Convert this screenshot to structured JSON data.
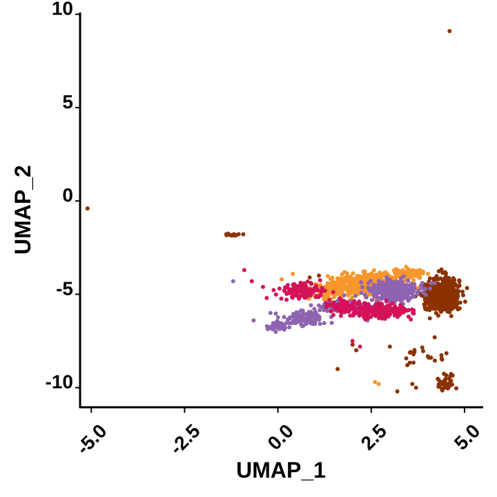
{
  "chart_data": {
    "type": "scatter",
    "xlabel": "UMAP_1",
    "ylabel": "UMAP_2",
    "xlim": [
      -5.3,
      5.5
    ],
    "ylim": [
      -11.05,
      10.1
    ],
    "x_ticks": [
      "-5.0",
      "-2.5",
      "0.0",
      "2.5",
      "5.0"
    ],
    "y_ticks": [
      "10",
      "5",
      "0",
      "-5",
      "-10"
    ],
    "grid": false,
    "legend": "none",
    "series": [
      {
        "color": "#8B3200",
        "clusters": [
          {
            "center": [
              4.5,
              -5.0
            ],
            "spread": [
              0.22,
              0.55
            ],
            "n": 520
          },
          {
            "center": [
              4.1,
              -5.1
            ],
            "spread": [
              0.18,
              0.45
            ],
            "n": 140
          },
          {
            "center": [
              4.5,
              -9.7
            ],
            "spread": [
              0.15,
              0.35
            ],
            "n": 40
          },
          {
            "center": [
              3.9,
              -8.3
            ],
            "spread": [
              0.35,
              0.25
            ],
            "n": 18
          },
          {
            "center": [
              -1.2,
              -1.8
            ],
            "spread": [
              0.12,
              0.07
            ],
            "n": 12
          }
        ],
        "points": [
          [
            4.6,
            9.1
          ],
          [
            -5.1,
            -0.4
          ],
          [
            1.6,
            -9.0
          ],
          [
            1.1,
            -4.0
          ],
          [
            0.85,
            -4.1
          ],
          [
            3.6,
            -9.8
          ],
          [
            3.2,
            -10.2
          ],
          [
            2.0,
            -7.7
          ],
          [
            2.1,
            -8.0
          ],
          [
            3.7,
            -10.0
          ],
          [
            4.4,
            -8.5
          ],
          [
            4.2,
            -7.3
          ],
          [
            3.0,
            -7.8
          ]
        ]
      },
      {
        "color": "#F7962B",
        "clusters": [
          {
            "center": [
              2.4,
              -4.5
            ],
            "spread": [
              0.6,
              0.35
            ],
            "n": 520
          },
          {
            "center": [
              3.5,
              -3.9
            ],
            "spread": [
              0.25,
              0.15
            ],
            "n": 90
          },
          {
            "center": [
              1.3,
              -4.9
            ],
            "spread": [
              0.3,
              0.3
            ],
            "n": 80
          }
        ],
        "points": [
          [
            0.4,
            -3.9
          ],
          [
            0.1,
            -4.2
          ],
          [
            2.7,
            -9.8
          ],
          [
            2.6,
            -9.7
          ]
        ]
      },
      {
        "color": "#8E64B0",
        "clusters": [
          {
            "center": [
              3.1,
              -4.8
            ],
            "spread": [
              0.4,
              0.35
            ],
            "n": 380
          },
          {
            "center": [
              1.8,
              -5.7
            ],
            "spread": [
              0.5,
              0.2
            ],
            "n": 130
          },
          {
            "center": [
              0.7,
              -6.3
            ],
            "spread": [
              0.35,
              0.25
            ],
            "n": 110
          },
          {
            "center": [
              0.0,
              -6.7
            ],
            "spread": [
              0.15,
              0.12
            ],
            "n": 60
          }
        ],
        "points": [
          [
            -1.2,
            -4.3
          ],
          [
            -0.65,
            -6.4
          ],
          [
            -0.2,
            -6.0
          ],
          [
            2.4,
            -6.4
          ],
          [
            4.2,
            -4.4
          ]
        ]
      },
      {
        "color": "#D41159",
        "clusters": [
          {
            "center": [
              2.7,
              -5.9
            ],
            "spread": [
              0.5,
              0.25
            ],
            "n": 230
          },
          {
            "center": [
              0.6,
              -4.8
            ],
            "spread": [
              0.35,
              0.25
            ],
            "n": 120
          },
          {
            "center": [
              1.8,
              -5.6
            ],
            "spread": [
              0.3,
              0.2
            ],
            "n": 70
          }
        ],
        "points": [
          [
            -0.9,
            -3.7
          ],
          [
            -0.7,
            -4.3
          ],
          [
            -0.4,
            -4.6
          ],
          [
            -0.3,
            -5.2
          ],
          [
            2.0,
            -7.5
          ],
          [
            2.2,
            -7.8
          ],
          [
            3.5,
            -6.2
          ]
        ]
      }
    ]
  }
}
